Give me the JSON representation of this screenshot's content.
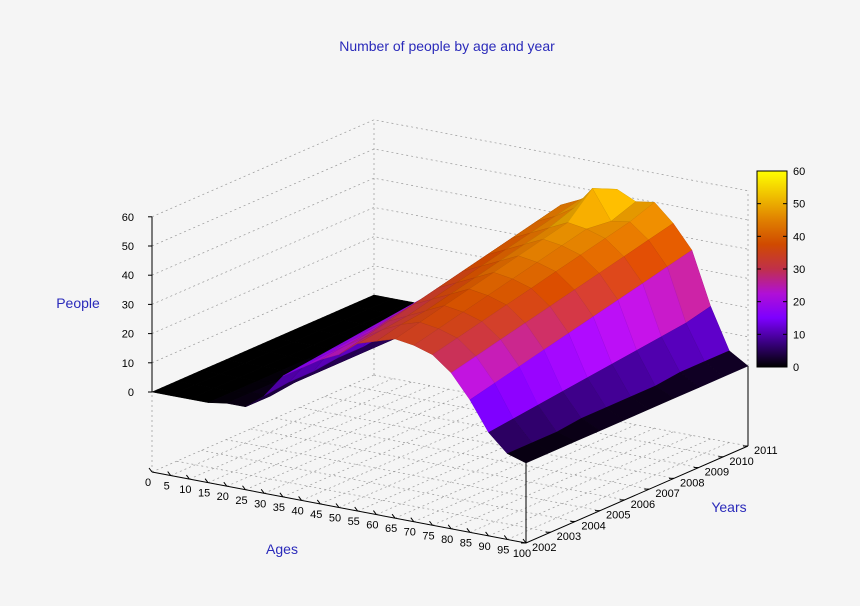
{
  "chart_data": {
    "type": "surface3d",
    "title": "Number of people by age and year",
    "xlabel": "Ages",
    "ylabel": "Years",
    "zlabel": "People",
    "x_ticks": [
      "0",
      "5",
      "10",
      "15",
      "20",
      "25",
      "30",
      "35",
      "40",
      "45",
      "50",
      "55",
      "60",
      "65",
      "70",
      "75",
      "80",
      "85",
      "90",
      "95",
      "100"
    ],
    "y_ticks": [
      "2002",
      "2003",
      "2004",
      "2005",
      "2006",
      "2007",
      "2008",
      "2009",
      "2010",
      "2011"
    ],
    "z_ticks": [
      "0",
      "10",
      "20",
      "30",
      "40",
      "50",
      "60"
    ],
    "zlim": [
      0,
      60
    ],
    "colorbar_ticks": [
      "0",
      "10",
      "20",
      "30",
      "40",
      "50",
      "60"
    ],
    "colormap": [
      "#000000",
      "#3a0082",
      "#7d00ff",
      "#b010d6",
      "#c0304a",
      "#d04a00",
      "#e08000",
      "#f0c000",
      "#ffff00"
    ],
    "grid": true,
    "ages": [
      0,
      5,
      10,
      15,
      20,
      25,
      30,
      35,
      40,
      45,
      50,
      55,
      60,
      65,
      70,
      75,
      80,
      85,
      90,
      95,
      100
    ],
    "years": [
      2002,
      2003,
      2004,
      2005,
      2006,
      2007,
      2008,
      2009,
      2010,
      2011
    ],
    "values": [
      [
        0,
        0,
        0,
        0,
        1,
        1,
        6,
        14,
        18,
        22,
        25,
        30,
        32,
        34,
        33,
        31,
        26,
        18,
        8,
        2,
        0
      ],
      [
        0,
        0,
        0,
        0,
        1,
        1,
        7,
        15,
        19,
        23,
        27,
        31,
        34,
        36,
        35,
        33,
        28,
        20,
        9,
        2,
        0
      ],
      [
        0,
        0,
        0,
        0,
        1,
        2,
        7,
        16,
        20,
        24,
        29,
        32,
        35,
        38,
        37,
        35,
        30,
        22,
        10,
        2,
        0
      ],
      [
        0,
        0,
        0,
        0,
        1,
        2,
        8,
        17,
        21,
        26,
        31,
        34,
        37,
        40,
        39,
        37,
        32,
        24,
        11,
        3,
        0
      ],
      [
        0,
        0,
        0,
        0,
        1,
        2,
        8,
        18,
        22,
        27,
        33,
        36,
        39,
        42,
        41,
        39,
        34,
        26,
        12,
        3,
        0
      ],
      [
        0,
        0,
        0,
        0,
        1,
        2,
        9,
        19,
        23,
        28,
        35,
        38,
        41,
        44,
        43,
        41,
        36,
        28,
        13,
        3,
        0
      ],
      [
        0,
        0,
        0,
        0,
        1,
        2,
        9,
        20,
        24,
        30,
        37,
        40,
        43,
        46,
        45,
        43,
        38,
        30,
        14,
        3,
        0
      ],
      [
        0,
        0,
        0,
        0,
        1,
        2,
        10,
        21,
        25,
        31,
        39,
        42,
        45,
        48,
        47,
        45,
        40,
        32,
        15,
        4,
        0
      ],
      [
        0,
        0,
        0,
        0,
        1,
        2,
        10,
        22,
        26,
        33,
        41,
        44,
        48,
        56,
        46,
        47,
        42,
        34,
        16,
        4,
        0
      ],
      [
        0,
        0,
        0,
        0,
        1,
        2,
        11,
        23,
        27,
        34,
        43,
        46,
        50,
        52,
        49,
        50,
        44,
        36,
        18,
        4,
        0
      ]
    ]
  }
}
